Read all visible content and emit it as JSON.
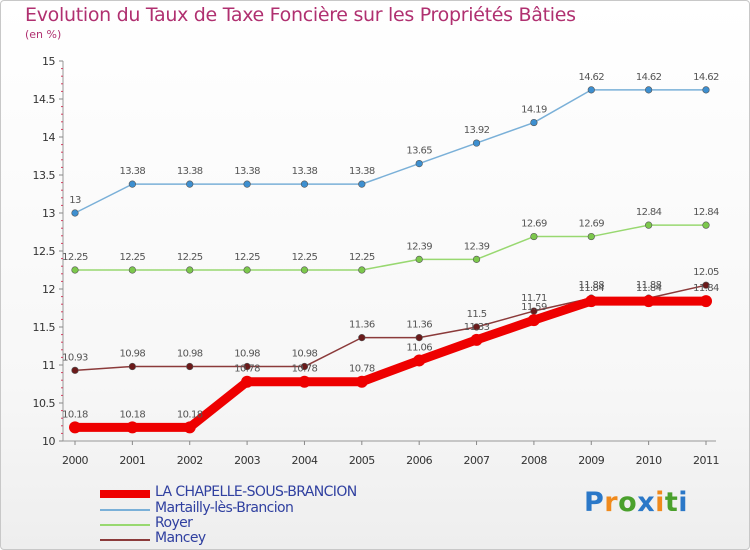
{
  "chart": {
    "title": "Evolution du Taux de Taxe Foncière sur les Propriétés Bâties",
    "unit": "(en %)"
  },
  "brand": {
    "name": "Proxiti",
    "letters": [
      {
        "ch": "P",
        "color": "#2b78c8"
      },
      {
        "ch": "r",
        "color": "#f08a1c"
      },
      {
        "ch": "o",
        "color": "#4aa02c"
      },
      {
        "ch": "x",
        "color": "#2b78c8"
      },
      {
        "ch": "i",
        "color": "#f08a1c"
      },
      {
        "ch": "t",
        "color": "#4aa02c"
      },
      {
        "ch": "i",
        "color": "#2b78c8"
      }
    ]
  },
  "chart_data": {
    "type": "line",
    "x": [
      "2000",
      "2001",
      "2002",
      "2003",
      "2004",
      "2005",
      "2006",
      "2007",
      "2008",
      "2009",
      "2010",
      "2011"
    ],
    "ylim": [
      10,
      15
    ],
    "yticks": [
      "10",
      "10.5",
      "11",
      "11.5",
      "12",
      "12.5",
      "13",
      "13.5",
      "14",
      "14.5",
      "15"
    ],
    "grid": false,
    "legend_position": "bottom-left",
    "series": [
      {
        "name": "Martailly-lès-Brancion",
        "color": "#7ab0d8",
        "marker_color": "#3d8fd0",
        "values": [
          13,
          13.38,
          13.38,
          13.38,
          13.38,
          13.38,
          13.65,
          13.92,
          14.19,
          14.62,
          14.62,
          14.62
        ],
        "labels": [
          "13",
          "13.38",
          "13.38",
          "13.38",
          "13.38",
          "13.38",
          "13.65",
          "13.92",
          "14.19",
          "14.62",
          "14.62",
          "14.62"
        ]
      },
      {
        "name": "Royer",
        "color": "#98d870",
        "marker_color": "#7cc84c",
        "values": [
          12.25,
          12.25,
          12.25,
          12.25,
          12.25,
          12.25,
          12.39,
          12.39,
          12.69,
          12.69,
          12.84,
          12.84
        ],
        "labels": [
          "12.25",
          "12.25",
          "12.25",
          "12.25",
          "12.25",
          "12.25",
          "12.39",
          "12.39",
          "12.69",
          "12.69",
          "12.84",
          "12.84"
        ]
      },
      {
        "name": "Mancey",
        "color": "#8b3a3a",
        "marker_color": "#6b1a1a",
        "values": [
          10.93,
          10.98,
          10.98,
          10.98,
          10.98,
          11.36,
          11.36,
          11.5,
          11.71,
          11.88,
          11.88,
          12.05
        ],
        "labels": [
          "10.93",
          "10.98",
          "10.98",
          "10.98",
          "10.98",
          "11.36",
          "11.36",
          "11.5",
          "11.71",
          "11.88",
          "11.88",
          "12.05"
        ]
      },
      {
        "name": "LA CHAPELLE-SOUS-BRANCION",
        "color": "#ee0000",
        "marker_color": "#ee0000",
        "values": [
          10.18,
          10.18,
          10.18,
          10.78,
          10.78,
          10.78,
          11.06,
          11.33,
          11.59,
          11.84,
          11.84,
          11.84
        ],
        "labels": [
          "10.18",
          "10.18",
          "10.18",
          "10.78",
          "10.78",
          "10.78",
          "11.06",
          "11.33",
          "11.59",
          "11.84",
          "11.84",
          "11.84"
        ]
      }
    ]
  }
}
